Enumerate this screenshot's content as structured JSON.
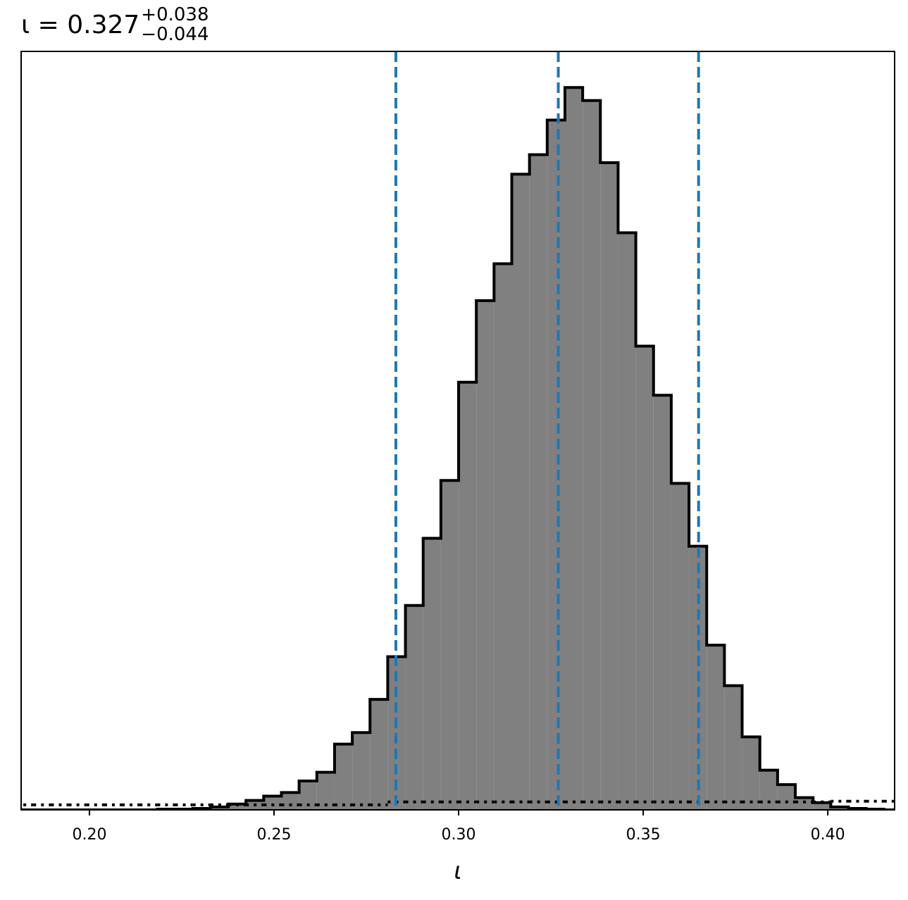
{
  "chart_data": {
    "type": "histogram",
    "title": {
      "text": "ι = 0.327",
      "upper": "+0.038",
      "lower": "−0.044"
    },
    "x_label": "ι",
    "bins": [
      0.18,
      0.1848,
      0.1896,
      0.1944,
      0.1992,
      0.204,
      0.2088,
      0.2136,
      0.2184,
      0.2232,
      0.228,
      0.2328,
      0.2376,
      0.2424,
      0.2472,
      0.252,
      0.2568,
      0.2616,
      0.2664,
      0.2712,
      0.276,
      0.2808,
      0.2856,
      0.2904,
      0.2952,
      0.3,
      0.3048,
      0.3096,
      0.3144,
      0.3192,
      0.324,
      0.3288,
      0.3336,
      0.3384,
      0.3432,
      0.348,
      0.3528,
      0.3576,
      0.3624,
      0.3672,
      0.372,
      0.3768,
      0.3816,
      0.3864,
      0.3912,
      0.396,
      0.4008,
      0.4056,
      0.4104,
      0.4152,
      0.42
    ],
    "series": [
      {
        "color": "#808080",
        "edge_color": "#000000",
        "values": [
          0,
          0,
          0,
          0,
          0,
          0,
          0,
          0,
          0.001,
          0.001,
          0.002,
          0.004,
          0.008,
          0.013,
          0.019,
          0.024,
          0.04,
          0.052,
          0.091,
          0.107,
          0.153,
          0.212,
          0.283,
          0.376,
          0.456,
          0.592,
          0.705,
          0.756,
          0.88,
          0.907,
          0.955,
          1.0,
          0.982,
          0.896,
          0.799,
          0.642,
          0.574,
          0.452,
          0.365,
          0.228,
          0.172,
          0.101,
          0.055,
          0.035,
          0.017,
          0.01,
          0.004,
          0.002,
          0.001,
          0
        ]
      },
      {
        "color": "#000000",
        "style": "dotted",
        "values": [
          0.007,
          0.007,
          0.007,
          0.007,
          0.007,
          0.007,
          0.007,
          0.007,
          0.007,
          0.007,
          0.007,
          0.007,
          0.007,
          0.007,
          0.007,
          0.007,
          0.007,
          0.007,
          0.007,
          0.007,
          0.007,
          0.011,
          0.011,
          0.011,
          0.011,
          0.011,
          0.011,
          0.011,
          0.011,
          0.011,
          0.011,
          0.011,
          0.011,
          0.011,
          0.011,
          0.011,
          0.011,
          0.011,
          0.011,
          0.011,
          0.011,
          0.011,
          0.011,
          0.011,
          0.011,
          0.011,
          0.012,
          0.012,
          0.012,
          0.012
        ]
      }
    ],
    "vlines": [
      0.283,
      0.327,
      0.365
    ],
    "vline_color": "#1f77b4",
    "xlim": [
      0.1815,
      0.4181
    ],
    "ylim": [
      0,
      1.05
    ],
    "xticks": [
      {
        "value": 0.2,
        "label": "0.20"
      },
      {
        "value": 0.25,
        "label": "0.25"
      },
      {
        "value": 0.3,
        "label": "0.30"
      },
      {
        "value": 0.35,
        "label": "0.35"
      },
      {
        "value": 0.4,
        "label": "0.40"
      }
    ],
    "grid": false
  }
}
